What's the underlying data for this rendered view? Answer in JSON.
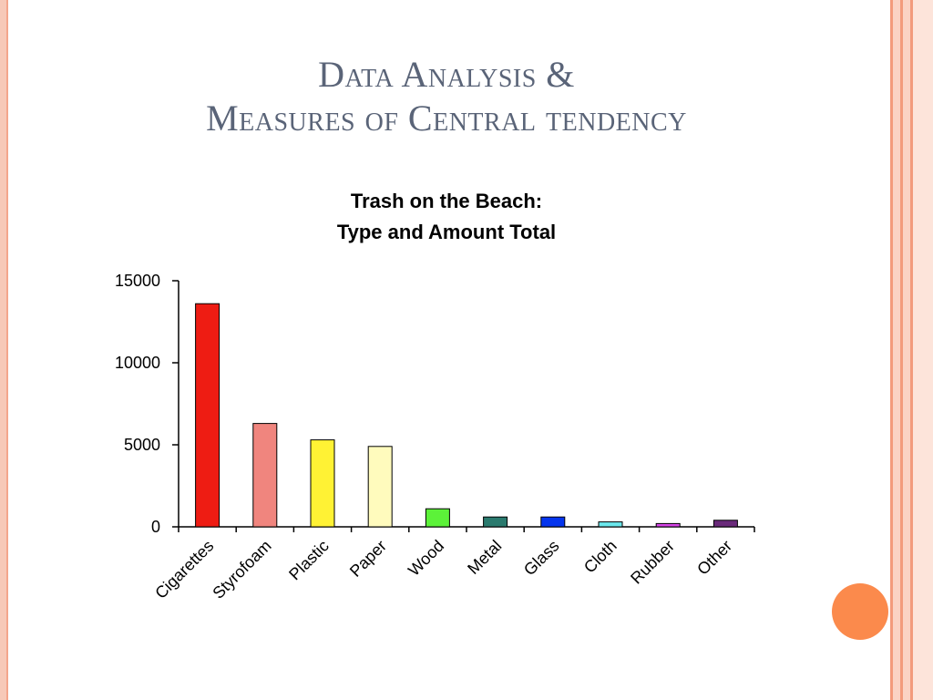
{
  "slide": {
    "title_line1": "Data Analysis &",
    "title_line2": "Measures of Central tendency"
  },
  "chart_data": {
    "type": "bar",
    "title_line1": "Trash on the Beach:",
    "title_line2": "Type and Amount Total",
    "categories": [
      "Cigarettes",
      "Styrofoam",
      "Plastic",
      "Paper",
      "Wood",
      "Metal",
      "Glass",
      "Cloth",
      "Rubber",
      "Other"
    ],
    "values": [
      13600,
      6300,
      5300,
      4900,
      1100,
      600,
      600,
      300,
      200,
      400
    ],
    "colors": [
      "#ee1c13",
      "#f0857e",
      "#fff234",
      "#fffbbd",
      "#5cf239",
      "#2a7a6e",
      "#0535ee",
      "#6be8ed",
      "#d745e8",
      "#6a2a7a"
    ],
    "ylim": [
      0,
      15000
    ],
    "yticks": [
      0,
      5000,
      10000,
      15000
    ],
    "xlabel": "",
    "ylabel": "",
    "grid": false
  },
  "theme": {
    "title_color": "#5a6478",
    "accent": "#fb8a4c"
  }
}
